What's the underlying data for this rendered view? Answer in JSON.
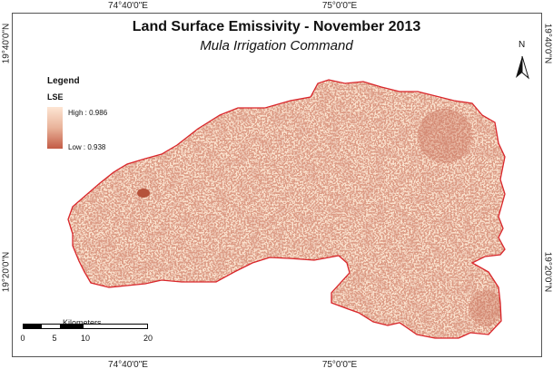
{
  "title": "Land Surface Emissivity - November 2013",
  "subtitle": "Mula Irrigation Command",
  "coordinates": {
    "top_left": "74°40'0\"E",
    "top_right": "75°0'0\"E",
    "bottom_left": "74°40'0\"E",
    "bottom_right": "75°0'0\"E",
    "left_top": "19°40'0\"N",
    "left_bottom": "19°20'0\"N",
    "right_top": "19°40'0\"N",
    "right_bottom": "19°20'0\"N"
  },
  "legend": {
    "title": "Legend",
    "variable": "LSE",
    "high_label": "High : 0.986",
    "low_label": "Low : 0.938",
    "high_value": 0.986,
    "low_value": 0.938,
    "ramp_colors": [
      "#fde5d3",
      "#e9b39a",
      "#c35b45"
    ]
  },
  "north_arrow": {
    "label": "N"
  },
  "scale_bar": {
    "unit": "Kilometers",
    "ticks": [
      "0",
      "5",
      "10",
      "20"
    ]
  },
  "colors": {
    "boundary": "#d9262b",
    "fill_light": "#fbe4d0",
    "fill_dark": "#b5523b"
  }
}
